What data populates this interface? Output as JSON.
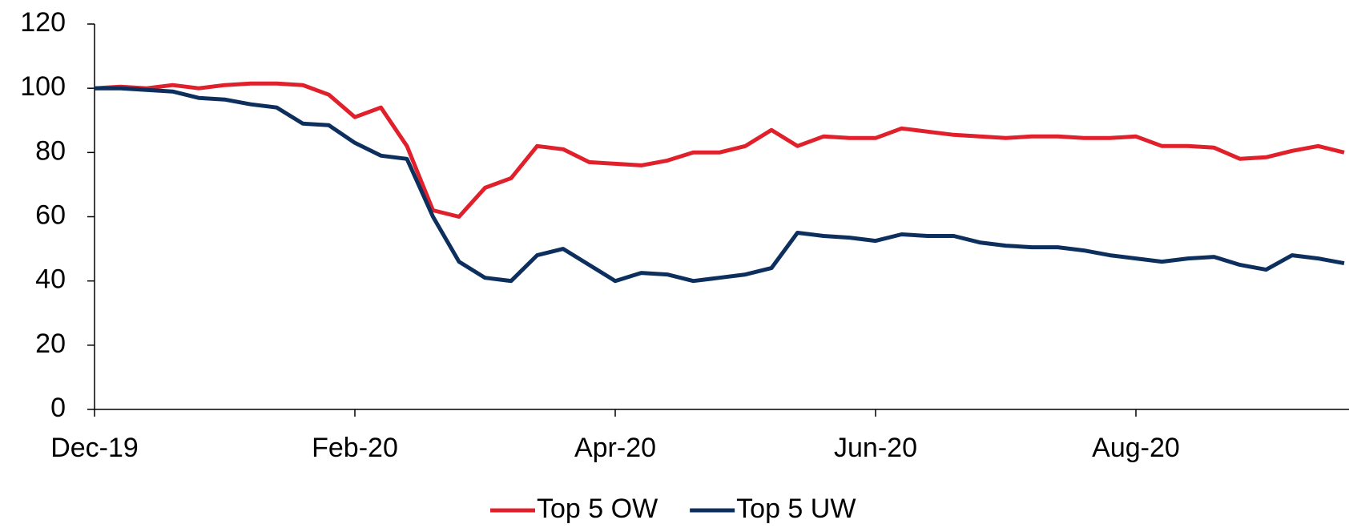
{
  "chart_data": {
    "type": "line",
    "categories": [
      "Dec-19",
      null,
      null,
      null,
      null,
      null,
      null,
      null,
      null,
      null,
      "Feb-20",
      null,
      null,
      null,
      null,
      null,
      null,
      null,
      null,
      null,
      "Apr-20",
      null,
      null,
      null,
      null,
      null,
      null,
      null,
      null,
      null,
      "Jun-20",
      null,
      null,
      null,
      null,
      null,
      null,
      null,
      null,
      null,
      "Aug-20",
      null,
      null,
      null,
      null,
      null,
      null,
      null,
      null
    ],
    "series": [
      {
        "name": "Top 5 OW",
        "color": "#e0202b",
        "values": [
          100,
          100.5,
          100,
          101,
          100,
          101,
          101.5,
          101.5,
          101,
          98,
          91,
          94,
          82,
          62,
          60,
          69,
          72,
          82,
          81,
          77,
          76.5,
          76,
          77.5,
          80,
          80,
          82,
          87,
          82,
          85,
          84.5,
          84.5,
          87.5,
          86.5,
          85.5,
          85,
          84.5,
          85,
          85,
          84.5,
          84.5,
          85,
          82,
          82,
          81.5,
          78,
          78.5,
          80.5,
          82,
          80
        ]
      },
      {
        "name": "Top 5 UW",
        "color": "#0d2f5e",
        "values": [
          100,
          100,
          99.5,
          99,
          97,
          96.5,
          95,
          94,
          89,
          88.5,
          83,
          79,
          78,
          60,
          46,
          41,
          40,
          48,
          50,
          45,
          40,
          42.5,
          42,
          40,
          41,
          42,
          44,
          55,
          54,
          53.5,
          52.5,
          54.5,
          54,
          54,
          52,
          51,
          50.5,
          50.5,
          49.5,
          48,
          47,
          46,
          47,
          47.5,
          45,
          43.5,
          48,
          47,
          45.5
        ]
      }
    ],
    "ylim": [
      0,
      120
    ],
    "yticks": [
      0,
      20,
      40,
      60,
      80,
      100,
      120
    ],
    "grid": false,
    "legend": "bottom"
  }
}
